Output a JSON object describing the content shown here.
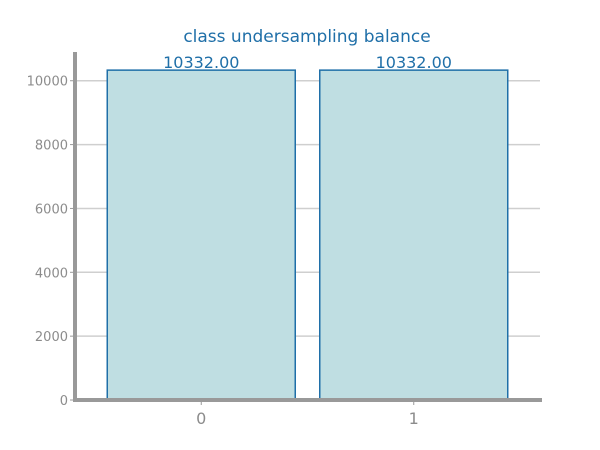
{
  "chart_data": {
    "type": "bar",
    "title": "class undersampling balance",
    "xlabel": "",
    "ylabel": "",
    "categories": [
      "0",
      "1"
    ],
    "values": [
      10332,
      10332
    ],
    "data_labels": [
      "10332.00",
      "10332.00"
    ],
    "yticks": [
      0,
      2000,
      4000,
      6000,
      8000,
      10000
    ],
    "ytick_labels": [
      "0",
      "2000",
      "4000",
      "6000",
      "8000",
      "10000"
    ],
    "ylim": [
      0,
      10900
    ],
    "grid": "horizontal",
    "colors": {
      "bar_fill": "#bfdee2",
      "bar_edge": "#1f6fa8",
      "title": "#1f6fa8",
      "data_label": "#1f6fa8",
      "tick_label": "#8c8c8c",
      "axis": "#999999",
      "grid": "#cfcfcf"
    }
  }
}
